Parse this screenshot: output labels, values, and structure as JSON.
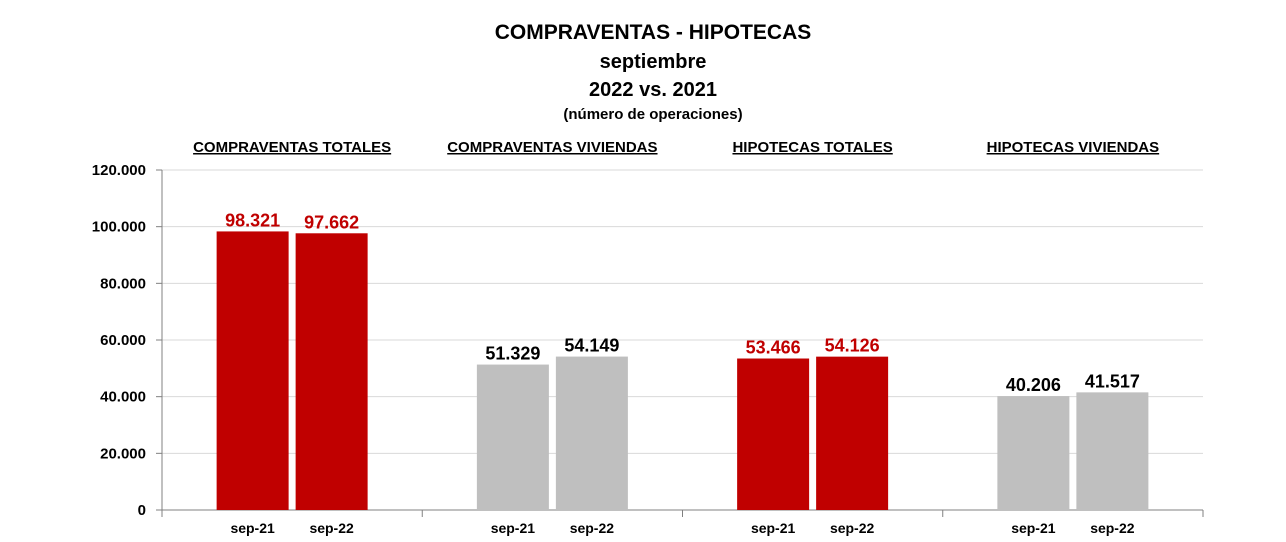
{
  "chart_data": {
    "type": "bar",
    "title": "COMPRAVENTAS - HIPOTECAS",
    "subtitle_lines": [
      "septiembre",
      "2022 vs. 2021",
      "(número de operaciones)"
    ],
    "ylim": [
      0,
      120000
    ],
    "yticks": [
      "0",
      "20.000",
      "40.000",
      "60.000",
      "80.000",
      "100.000",
      "120.000"
    ],
    "grid": true,
    "groups": [
      {
        "label": "COMPRAVENTAS TOTALES",
        "color": "#C00000",
        "label_color": "#C00000",
        "categories": [
          "sep-21",
          "sep-22"
        ],
        "values": [
          98321,
          97662
        ],
        "data_labels": [
          "98.321",
          "97.662"
        ]
      },
      {
        "label": "COMPRAVENTAS VIVIENDAS",
        "color": "#BFBFBF",
        "label_color": "#000000",
        "categories": [
          "sep-21",
          "sep-22"
        ],
        "values": [
          51329,
          54149
        ],
        "data_labels": [
          "51.329",
          "54.149"
        ]
      },
      {
        "label": "HIPOTECAS TOTALES",
        "color": "#C00000",
        "label_color": "#C00000",
        "categories": [
          "sep-21",
          "sep-22"
        ],
        "values": [
          53466,
          54126
        ],
        "data_labels": [
          "53.466",
          "54.126"
        ]
      },
      {
        "label": "HIPOTECAS VIVIENDAS",
        "color": "#BFBFBF",
        "label_color": "#000000",
        "categories": [
          "sep-21",
          "sep-22"
        ],
        "values": [
          40206,
          41517
        ],
        "data_labels": [
          "40.206",
          "41.517"
        ]
      }
    ]
  }
}
